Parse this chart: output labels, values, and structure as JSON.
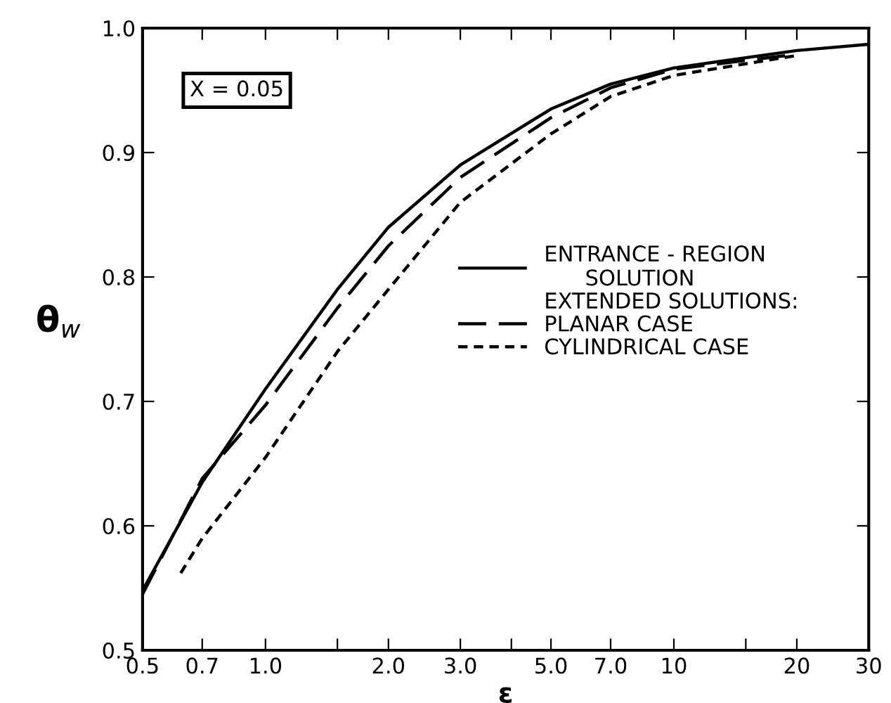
{
  "chart_data": {
    "type": "line",
    "xlabel": "ε",
    "ylabel": "θ$_{w}$",
    "log": "x",
    "xlim": [
      0.5,
      30
    ],
    "ylim": [
      0.5,
      1.0
    ],
    "xticks": [
      {
        "value": 0.5,
        "label": "0.5"
      },
      {
        "value": 0.7,
        "label": "0.7"
      },
      {
        "value": 1.0,
        "label": "1.0"
      },
      {
        "value": 1.5,
        "label": null
      },
      {
        "value": 2.0,
        "label": "2.0"
      },
      {
        "value": 3.0,
        "label": "3.0"
      },
      {
        "value": 4.0,
        "label": null
      },
      {
        "value": 5.0,
        "label": "5.0"
      },
      {
        "value": 7.0,
        "label": "7.0"
      },
      10,
      {
        "value": 15,
        "label": null
      },
      20,
      30
    ],
    "yticks": [
      {
        "value": 0.5,
        "label": "0.5"
      },
      {
        "value": 0.6,
        "label": "0.6"
      },
      {
        "value": 0.7,
        "label": "0.7"
      },
      {
        "value": 0.8,
        "label": "0.8"
      },
      {
        "value": 0.9,
        "label": "0.9"
      },
      {
        "value": 1.0,
        "label": "1.0"
      }
    ],
    "grid": false,
    "legend": "right",
    "marker": "none",
    "annotations": [
      "X = 0.05",
      "EXTENDED SOLUTIONS:"
    ],
    "series": [
      {
        "name": "ENTRANCE - REGION\n      SOLUTION",
        "color": "#000000",
        "line_style": "solid",
        "x": [
          0.5,
          0.7,
          1.0,
          1.5,
          2.0,
          3.0,
          5.0,
          7.0,
          10,
          20,
          30
        ],
        "values": [
          0.548,
          0.635,
          0.71,
          0.79,
          0.84,
          0.89,
          0.935,
          0.955,
          0.968,
          0.982,
          0.987
        ]
      },
      {
        "name": "PLANAR CASE",
        "color": "#000000",
        "line_style": "dashed",
        "x": [
          0.5,
          0.7,
          1.0,
          1.5,
          2.0,
          3.0,
          5.0,
          7.0,
          10,
          20
        ],
        "values": [
          0.545,
          0.638,
          0.697,
          0.775,
          0.825,
          0.88,
          0.928,
          0.952,
          0.967,
          0.979
        ]
      },
      {
        "name": "CYLINDRICAL CASE",
        "color": "#000000",
        "line_style": "dotted",
        "x": [
          0.62,
          0.7,
          1.0,
          1.5,
          2.0,
          3.0,
          5.0,
          7.0,
          10,
          20
        ],
        "values": [
          0.562,
          0.59,
          0.655,
          0.74,
          0.79,
          0.86,
          0.915,
          0.945,
          0.962,
          0.978
        ]
      }
    ]
  }
}
